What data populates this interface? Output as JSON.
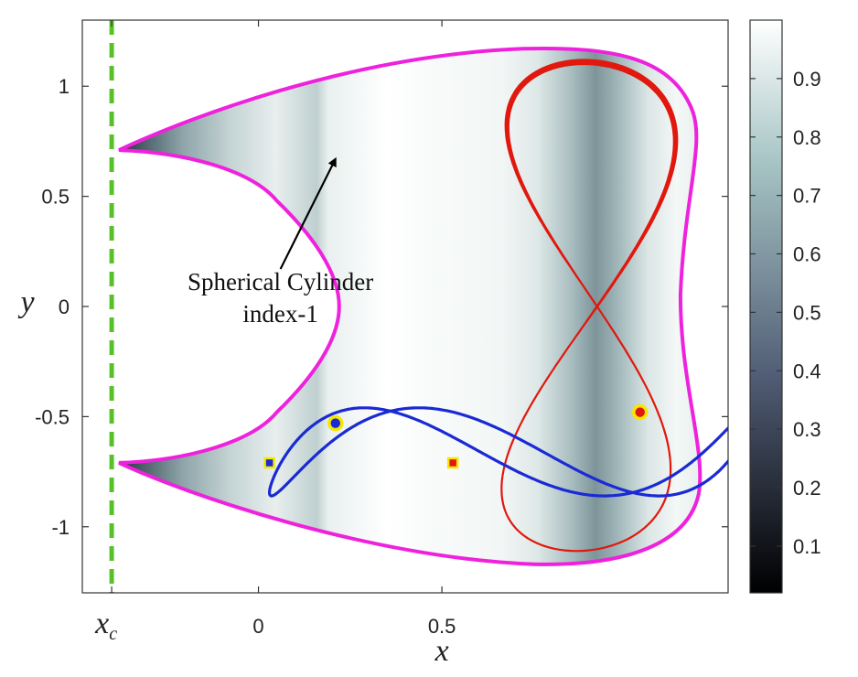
{
  "chart_data": {
    "type": "line",
    "xlabel": "x",
    "ylabel": "y",
    "xlim": [
      -0.48,
      1.28
    ],
    "ylim": [
      -1.3,
      1.3
    ],
    "x_ticks": [
      {
        "value": -0.4,
        "label": "x_c",
        "base": "x",
        "sub": "c"
      },
      {
        "value": 0,
        "label": "0"
      },
      {
        "value": 0.5,
        "label": "0.5"
      }
    ],
    "y_ticks": [
      {
        "value": 1,
        "label": "1"
      },
      {
        "value": 0.5,
        "label": "0.5"
      },
      {
        "value": 0,
        "label": "0"
      },
      {
        "value": -0.5,
        "label": "-0.5"
      },
      {
        "value": -1,
        "label": "-1"
      }
    ],
    "colorbar": {
      "min": 0.02,
      "max": 1.0,
      "ticks": [
        0.1,
        0.2,
        0.3,
        0.4,
        0.5,
        0.6,
        0.7,
        0.8,
        0.9
      ],
      "tick_labels": [
        "0.1",
        "0.2",
        "0.3",
        "0.4",
        "0.5",
        "0.6",
        "0.7",
        "0.8",
        "0.9"
      ],
      "colormap": "bone"
    },
    "x_c": -0.4,
    "x_c_line_color": "#58c12a",
    "boundary_color": "#ee22dd",
    "red_orbit_color": "#e0180e",
    "blue_orbit_color": "#1a2ad4",
    "marker_edge_color": "#f5e800",
    "boundary": {
      "cusps": [
        [
          -0.38,
          0.71
        ],
        [
          -0.38,
          -0.71
        ]
      ],
      "inner_apex_x": 0.22,
      "right_top": [
        1.0,
        1.17
      ],
      "right_mid_x": 1.15,
      "right_bottom": [
        1.0,
        -1.17
      ]
    },
    "red_orbit": {
      "center": [
        0.9,
        0
      ],
      "x_amplitude": 0.23,
      "y_amplitude": 1.11,
      "shape": "figure-eight"
    },
    "blue_orbit": {
      "center": [
        0.69,
        -0.66
      ],
      "x_amplitude": 0.66,
      "y_amplitude": 0.2,
      "shape": "lissajous"
    },
    "markers": [
      {
        "shape": "circle",
        "x": 0.21,
        "y": -0.53,
        "fill": "#1a2ad4"
      },
      {
        "shape": "circle",
        "x": 1.04,
        "y": -0.48,
        "fill": "#e0180e"
      },
      {
        "shape": "square",
        "x": 0.03,
        "y": -0.71,
        "fill": "#1a2ad4"
      },
      {
        "shape": "square",
        "x": 0.53,
        "y": -0.71,
        "fill": "#e0180e"
      }
    ],
    "annotation": {
      "lines": [
        "Spherical Cylinder",
        "index-1"
      ],
      "arrow_to": [
        0.21,
        0.67
      ]
    }
  }
}
